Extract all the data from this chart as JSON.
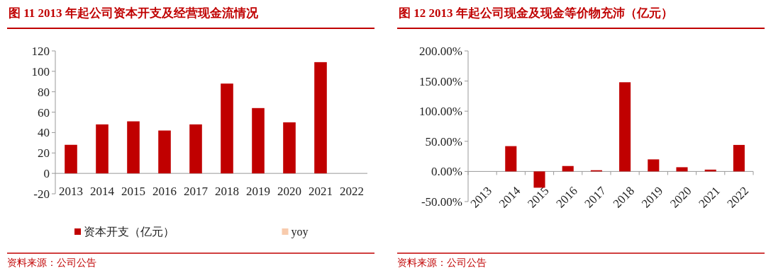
{
  "chart_data": [
    {
      "type": "bar",
      "title": "图 11  2013 年起公司资本开支及经营现金流情况",
      "categories": [
        "2013",
        "2014",
        "2015",
        "2016",
        "2017",
        "2018",
        "2019",
        "2020",
        "2021",
        "2022"
      ],
      "series": [
        {
          "name": "资本开支（亿元）",
          "color": "#c00000",
          "values": [
            28,
            48,
            51,
            42,
            48,
            88,
            64,
            50,
            109,
            null
          ]
        },
        {
          "name": "yoy",
          "color": "#f8cbad",
          "values": [
            null,
            null,
            null,
            null,
            null,
            null,
            null,
            null,
            null,
            null
          ]
        }
      ],
      "ylim": [
        -20,
        120
      ],
      "yticks": [
        -20,
        0,
        20,
        40,
        60,
        80,
        100,
        120
      ],
      "grid": false,
      "legend": "bottom",
      "annotations": [
        "资料来源：公司公告"
      ]
    },
    {
      "type": "bar",
      "title": "图 12  2013 年起公司现金及现金等价物充沛（亿元）",
      "categories": [
        "2013",
        "2014",
        "2015",
        "2016",
        "2017",
        "2018",
        "2019",
        "2020",
        "2021",
        "2022"
      ],
      "series": [
        {
          "color": "#c00000",
          "values": [
            null,
            42,
            -27,
            9,
            2,
            148,
            20,
            7,
            3,
            44
          ]
        }
      ],
      "ylim": [
        -50,
        200
      ],
      "yticks": [
        {
          "value": -50,
          "label": "-50.00%"
        },
        {
          "value": 0,
          "label": "0.00%"
        },
        {
          "value": 50,
          "label": "50.00%"
        },
        {
          "value": 100,
          "label": "100.00%"
        },
        {
          "value": 150,
          "label": "150.00%"
        },
        {
          "value": 200,
          "label": "200.00%"
        }
      ],
      "grid": false,
      "annotations": [
        "资料来源：公司公告"
      ]
    }
  ]
}
